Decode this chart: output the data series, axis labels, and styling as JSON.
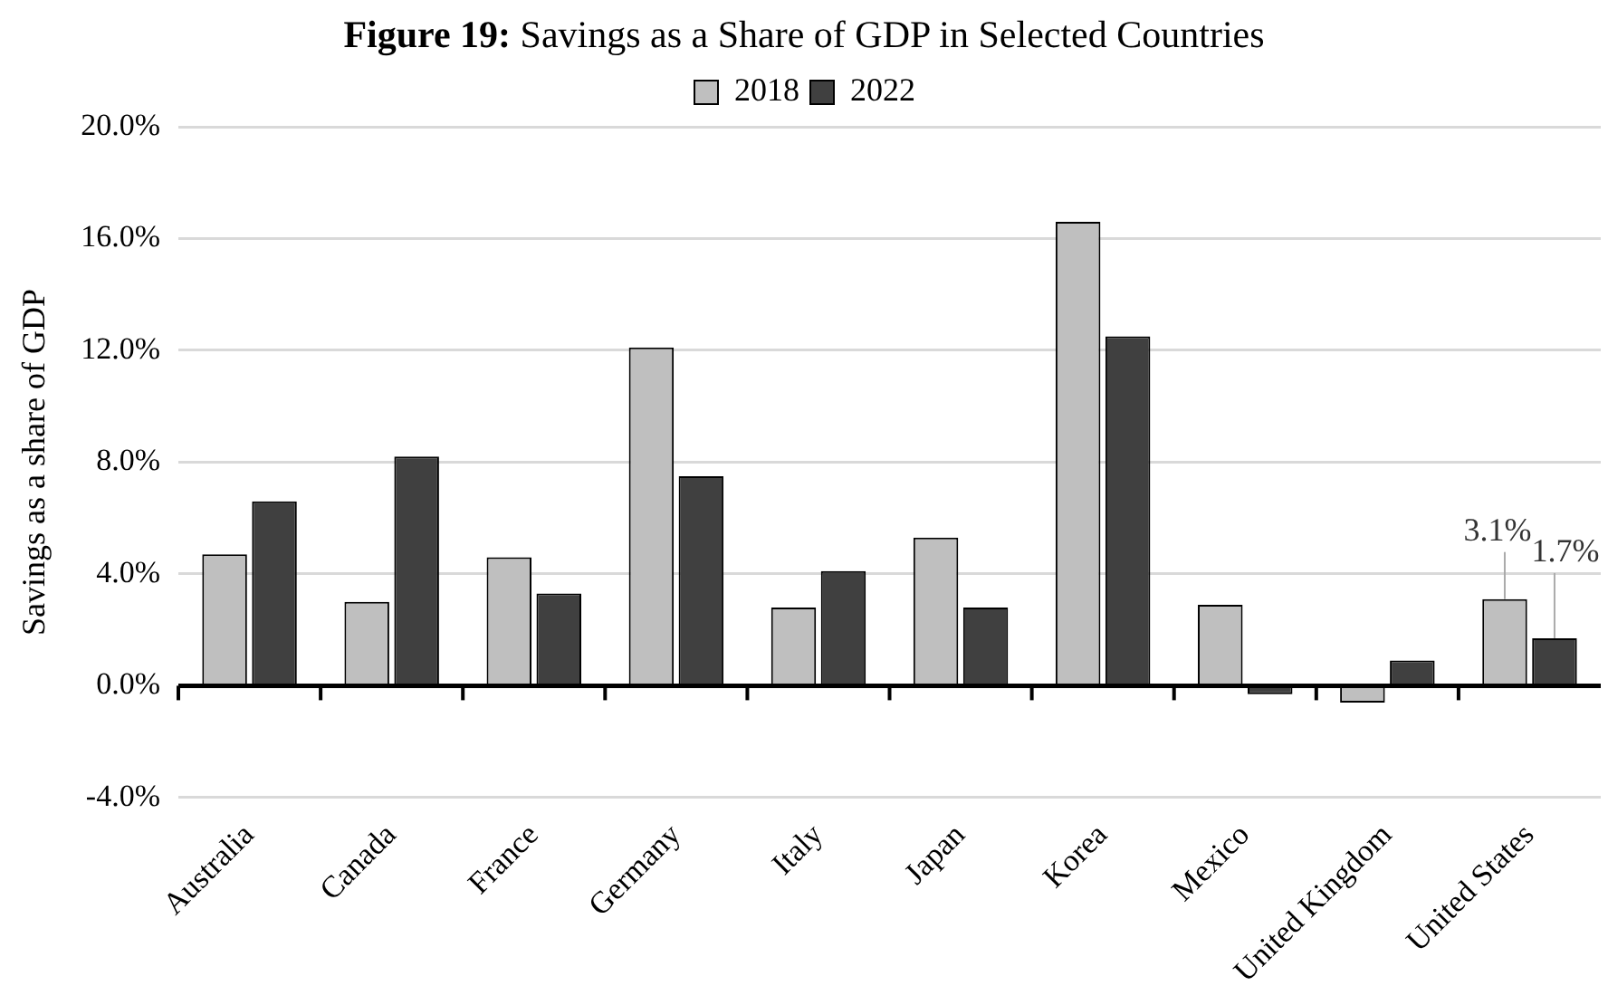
{
  "chart_data": {
    "type": "bar",
    "title": "Figure 19: Savings as a Share of GDP in Selected Countries",
    "ylabel": "Savings as a share of GDP",
    "categories": [
      "Australia",
      "Canada",
      "France",
      "Germany",
      "Italy",
      "Japan",
      "Korea",
      "Mexico",
      "United Kingdom",
      "United States"
    ],
    "series": [
      {
        "name": "2018",
        "color": "#bfbfbf",
        "values": [
          4.7,
          3.0,
          4.6,
          12.1,
          2.8,
          5.3,
          16.6,
          2.9,
          -0.6,
          3.1
        ],
        "value_labels": [
          null,
          null,
          null,
          null,
          null,
          null,
          null,
          null,
          null,
          "3.1%"
        ]
      },
      {
        "name": "2022",
        "color": "#404040",
        "values": [
          6.6,
          8.2,
          3.3,
          7.5,
          4.1,
          2.8,
          12.5,
          -0.3,
          0.9,
          1.7
        ],
        "value_labels": [
          null,
          null,
          null,
          null,
          null,
          null,
          null,
          null,
          null,
          "1.7%"
        ]
      }
    ],
    "ylim": [
      -4,
      20
    ],
    "yticks": [
      {
        "value": -4,
        "label": "-4.0%"
      },
      {
        "value": 0,
        "label": "0.0%"
      },
      {
        "value": 4,
        "label": "4.0%"
      },
      {
        "value": 8,
        "label": "8.0%"
      },
      {
        "value": 12,
        "label": "12.0%"
      },
      {
        "value": 16,
        "label": "16.0%"
      },
      {
        "value": 20,
        "label": "20.0%"
      }
    ],
    "grid": "y",
    "legend": "top"
  }
}
